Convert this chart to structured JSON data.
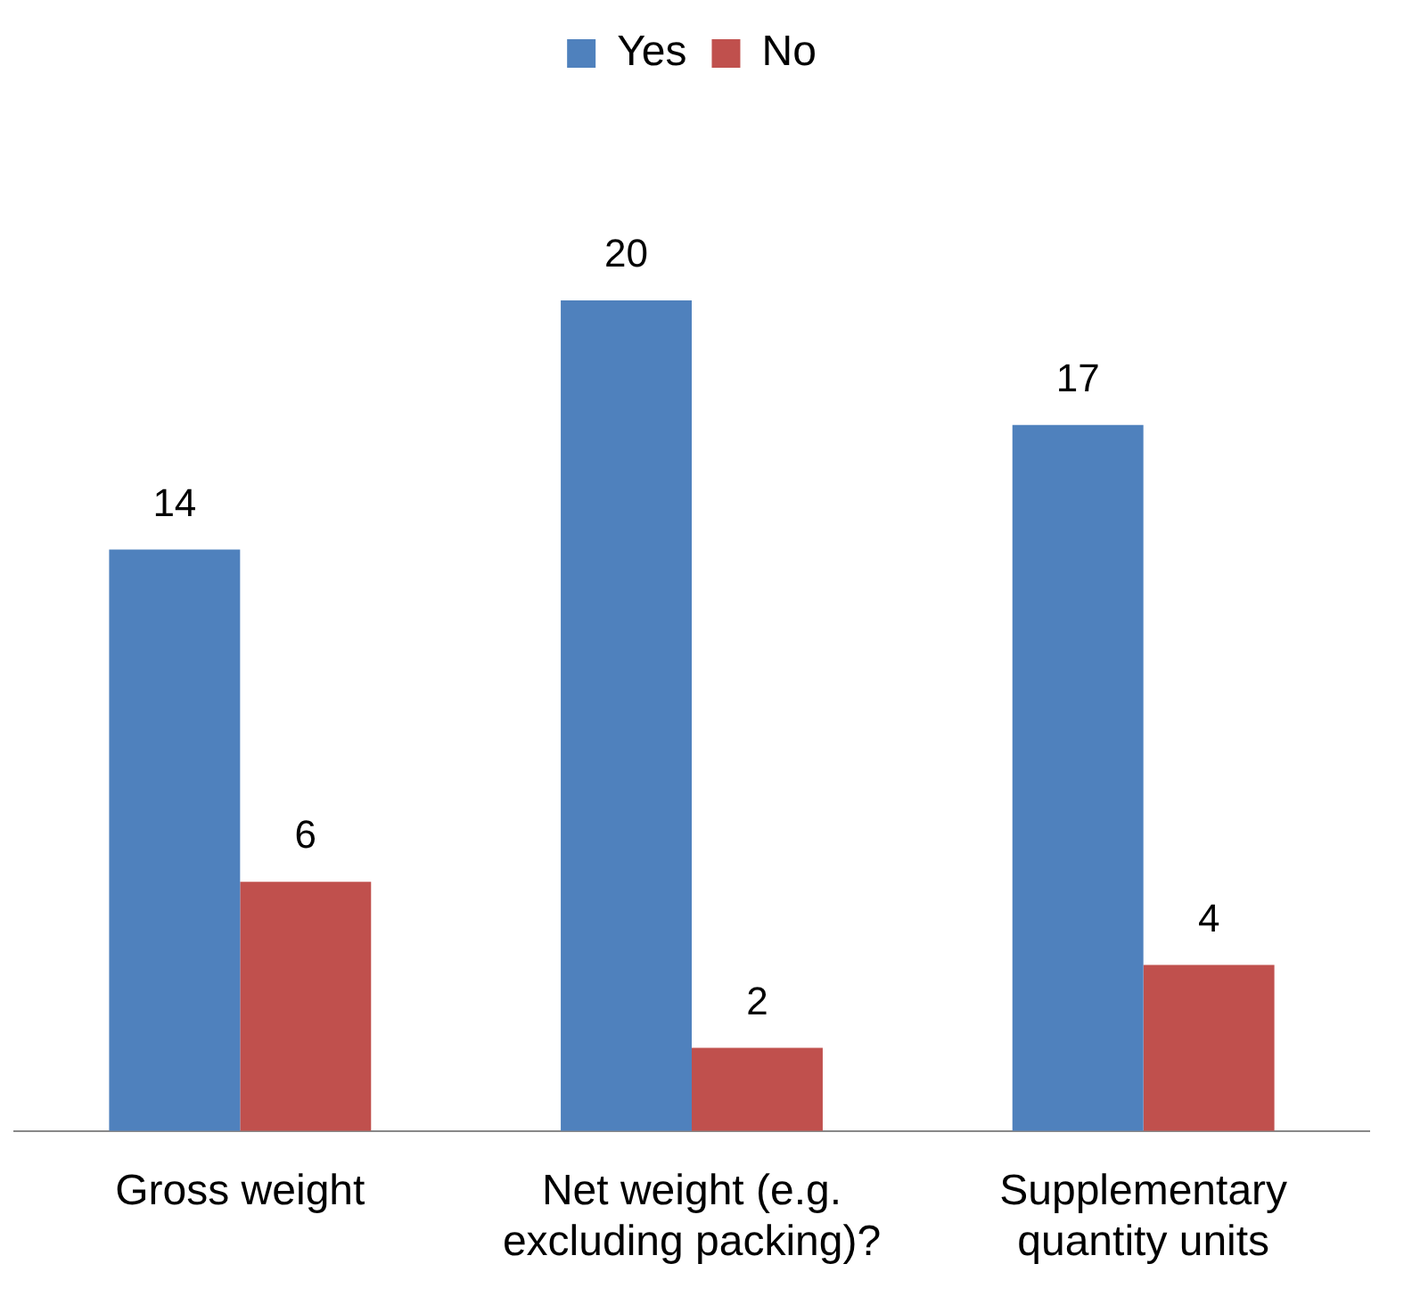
{
  "chart_data": {
    "type": "bar",
    "categories": [
      "Gross weight",
      "Net weight (e.g. excluding packing)?",
      "Supplementary quantity units"
    ],
    "series": [
      {
        "name": "Yes",
        "color": "#4f81bd",
        "values": [
          14,
          20,
          17
        ]
      },
      {
        "name": "No",
        "color": "#c0504d",
        "values": [
          6,
          2,
          4
        ]
      }
    ],
    "data_labels": true,
    "legend": "top",
    "grid": false,
    "tick_labels": "x"
  }
}
